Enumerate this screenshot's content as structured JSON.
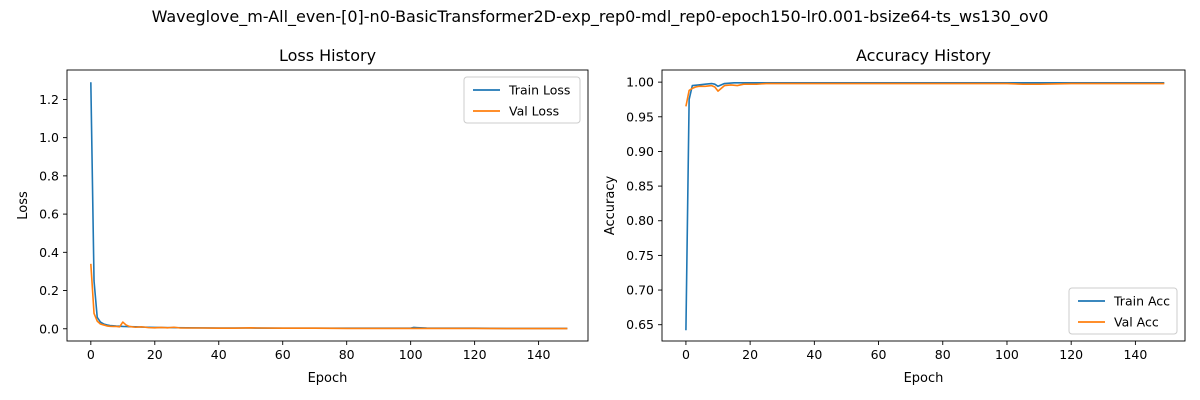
{
  "figure": {
    "suptitle": "Waveglove_m-All_even-[0]-n0-BasicTransformer2D-exp_rep0-mdl_rep0-epoch150-lr0.001-bsize64-ts_ws130_ov0"
  },
  "colors": {
    "train": "#1f77b4",
    "val": "#ff7f0e"
  },
  "chart_data": [
    {
      "type": "line",
      "title": "Loss History",
      "xlabel": "Epoch",
      "ylabel": "Loss",
      "xlim": [
        -7.45,
        155.45
      ],
      "ylim": [
        -0.064,
        1.354
      ],
      "xticks": [
        0,
        20,
        40,
        60,
        80,
        100,
        120,
        140
      ],
      "yticks": [
        0.0,
        0.2,
        0.4,
        0.6,
        0.8,
        1.0,
        1.2
      ],
      "ytick_labels": [
        "0.0",
        "0.2",
        "0.4",
        "0.6",
        "0.8",
        "1.0",
        "1.2"
      ],
      "grid": false,
      "legend": "upper right",
      "series": [
        {
          "name": "Train Loss",
          "x": [
            0,
            1,
            2,
            3,
            4,
            5,
            6,
            8,
            10,
            12,
            14,
            16,
            18,
            20,
            25,
            30,
            40,
            50,
            60,
            70,
            80,
            90,
            100,
            101,
            102,
            105,
            110,
            120,
            130,
            140,
            149
          ],
          "y": [
            1.29,
            0.25,
            0.06,
            0.035,
            0.025,
            0.02,
            0.017,
            0.014,
            0.012,
            0.011,
            0.01,
            0.009,
            0.008,
            0.007,
            0.006,
            0.005,
            0.004,
            0.004,
            0.003,
            0.003,
            0.003,
            0.003,
            0.003,
            0.007,
            0.006,
            0.004,
            0.003,
            0.003,
            0.002,
            0.002,
            0.002
          ]
        },
        {
          "name": "Val Loss",
          "x": [
            0,
            1,
            2,
            3,
            4,
            5,
            6,
            7,
            8,
            9,
            10,
            11,
            12,
            14,
            16,
            18,
            20,
            22,
            24,
            26,
            28,
            30,
            35,
            40,
            45,
            50,
            52,
            60,
            70,
            80,
            90,
            100,
            110,
            120,
            130,
            140,
            149
          ],
          "y": [
            0.34,
            0.08,
            0.04,
            0.025,
            0.02,
            0.015,
            0.013,
            0.012,
            0.012,
            0.01,
            0.035,
            0.02,
            0.012,
            0.008,
            0.01,
            0.006,
            0.005,
            0.007,
            0.005,
            0.008,
            0.004,
            0.004,
            0.004,
            0.003,
            0.003,
            0.005,
            0.004,
            0.003,
            0.003,
            0.002,
            0.002,
            0.002,
            0.002,
            0.002,
            0.001,
            0.001,
            0.001
          ]
        }
      ]
    },
    {
      "type": "line",
      "title": "Accuracy History",
      "xlabel": "Epoch",
      "ylabel": "Accuracy",
      "xlim": [
        -7.45,
        155.45
      ],
      "ylim": [
        0.6265,
        1.0175
      ],
      "xticks": [
        0,
        20,
        40,
        60,
        80,
        100,
        120,
        140
      ],
      "yticks": [
        0.65,
        0.7,
        0.75,
        0.8,
        0.85,
        0.9,
        0.95,
        1.0
      ],
      "ytick_labels": [
        "0.65",
        "0.70",
        "0.75",
        "0.80",
        "0.85",
        "0.90",
        "0.95",
        "1.00"
      ],
      "grid": false,
      "legend": "lower right",
      "series": [
        {
          "name": "Train Acc",
          "x": [
            0,
            1,
            2,
            4,
            6,
            8,
            9,
            10,
            12,
            15,
            20,
            30,
            40,
            60,
            80,
            100,
            120,
            149
          ],
          "y": [
            0.642,
            0.975,
            0.995,
            0.996,
            0.997,
            0.998,
            0.997,
            0.994,
            0.998,
            0.999,
            0.999,
            0.999,
            0.999,
            0.999,
            0.999,
            0.999,
            0.999,
            0.999
          ]
        },
        {
          "name": "Val Acc",
          "x": [
            0,
            1,
            2,
            3,
            4,
            6,
            8,
            9,
            10,
            12,
            14,
            16,
            18,
            20,
            22,
            25,
            30,
            40,
            50,
            60,
            80,
            92,
            100,
            105,
            110,
            120,
            149
          ],
          "y": [
            0.965,
            0.988,
            0.991,
            0.993,
            0.994,
            0.994,
            0.995,
            0.993,
            0.987,
            0.995,
            0.996,
            0.995,
            0.997,
            0.997,
            0.997,
            0.998,
            0.998,
            0.998,
            0.998,
            0.998,
            0.998,
            0.998,
            0.998,
            0.997,
            0.997,
            0.998,
            0.998
          ]
        }
      ]
    }
  ]
}
